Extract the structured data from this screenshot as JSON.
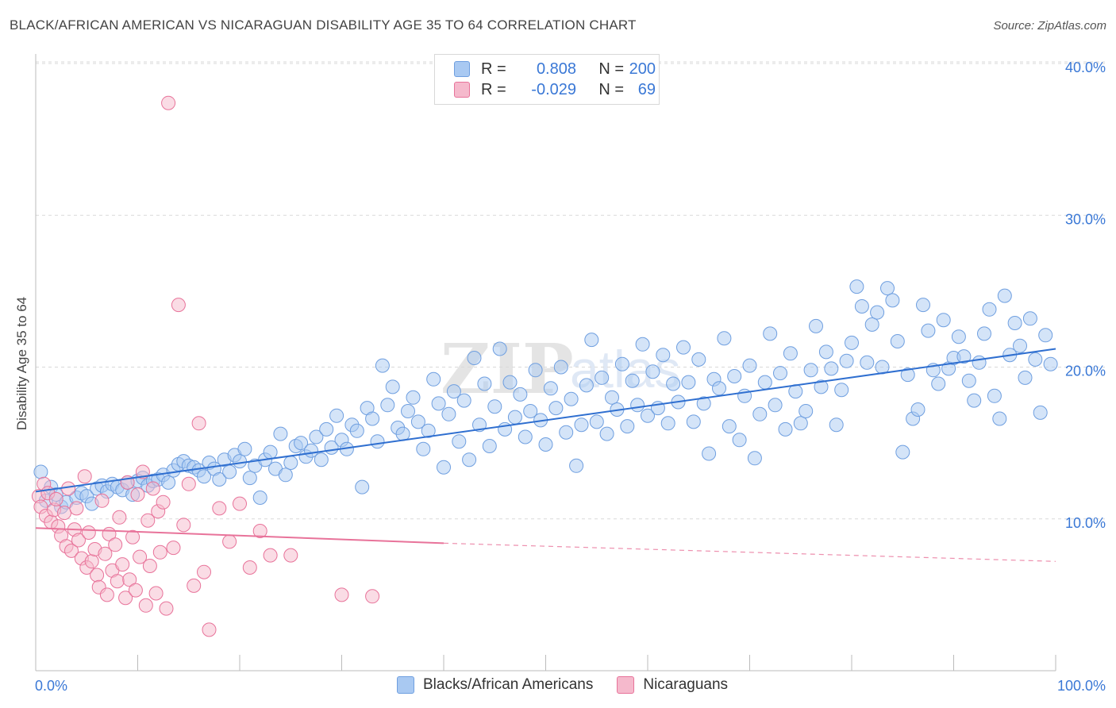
{
  "header": {
    "title": "BLACK/AFRICAN AMERICAN VS NICARAGUAN DISABILITY AGE 35 TO 64 CORRELATION CHART",
    "source": "Source: ZipAtlas.com"
  },
  "watermark": {
    "zip": "ZIP",
    "atlas": "atlas"
  },
  "legend_top": {
    "rows": [
      {
        "r_label": "R =",
        "r_value": "0.808",
        "n_label": "N =",
        "n_value": "200",
        "color": "#a9c9f2"
      },
      {
        "r_label": "R =",
        "r_value": "-0.029",
        "n_label": "N =",
        "n_value": "69",
        "color": "#f5b9cc"
      }
    ]
  },
  "chart_data": {
    "type": "scatter",
    "title": "BLACK/AFRICAN AMERICAN VS NICARAGUAN DISABILITY AGE 35 TO 64 CORRELATION CHART",
    "xlabel": "",
    "ylabel": "Disability Age 35 to 64",
    "xlim": [
      0,
      100
    ],
    "ylim": [
      0,
      40
    ],
    "x_tick_labels": [
      "0.0%",
      "100.0%"
    ],
    "y_ticks": [
      10,
      20,
      30,
      40
    ],
    "y_tick_labels": [
      "10.0%",
      "20.0%",
      "30.0%",
      "40.0%"
    ],
    "grid": true,
    "legend_placement": "top-center and bottom",
    "series": [
      {
        "name": "Blacks/African Americans",
        "color": "#6f9fe0",
        "fill": "#a9c9f2",
        "trend": {
          "x": [
            0,
            100
          ],
          "y": [
            11.8,
            21.2
          ],
          "style": "solid"
        },
        "points": [
          [
            0.5,
            13.1
          ],
          [
            1,
            11.2
          ],
          [
            1.5,
            12.1
          ],
          [
            2,
            11.6
          ],
          [
            2.5,
            10.8
          ],
          [
            3,
            11.1
          ],
          [
            4,
            11.4
          ],
          [
            4.5,
            11.7
          ],
          [
            5,
            11.5
          ],
          [
            5.5,
            11.0
          ],
          [
            6,
            12.0
          ],
          [
            6.5,
            12.2
          ],
          [
            7,
            11.8
          ],
          [
            7.5,
            12.3
          ],
          [
            8,
            12.1
          ],
          [
            8.5,
            11.9
          ],
          [
            9,
            12.4
          ],
          [
            9.5,
            11.6
          ],
          [
            10,
            12.5
          ],
          [
            10.5,
            12.7
          ],
          [
            11,
            12.2
          ],
          [
            11.5,
            12.5
          ],
          [
            12,
            12.6
          ],
          [
            12.5,
            12.9
          ],
          [
            13,
            12.4
          ],
          [
            13.5,
            13.2
          ],
          [
            14,
            13.6
          ],
          [
            14.5,
            13.8
          ],
          [
            15,
            13.5
          ],
          [
            15.5,
            13.4
          ],
          [
            16,
            13.2
          ],
          [
            16.5,
            12.8
          ],
          [
            17,
            13.7
          ],
          [
            17.5,
            13.3
          ],
          [
            18,
            12.6
          ],
          [
            18.5,
            13.9
          ],
          [
            19,
            13.1
          ],
          [
            19.5,
            14.2
          ],
          [
            20,
            13.8
          ],
          [
            20.5,
            14.6
          ],
          [
            21,
            12.7
          ],
          [
            21.5,
            13.5
          ],
          [
            22,
            11.4
          ],
          [
            22.5,
            13.9
          ],
          [
            23,
            14.4
          ],
          [
            23.5,
            13.3
          ],
          [
            24,
            15.6
          ],
          [
            24.5,
            12.9
          ],
          [
            25,
            13.7
          ],
          [
            25.5,
            14.8
          ],
          [
            26,
            15.0
          ],
          [
            26.5,
            14.1
          ],
          [
            27,
            14.5
          ],
          [
            27.5,
            15.4
          ],
          [
            28,
            13.9
          ],
          [
            28.5,
            15.9
          ],
          [
            29,
            14.7
          ],
          [
            29.5,
            16.8
          ],
          [
            30,
            15.2
          ],
          [
            30.5,
            14.6
          ],
          [
            31,
            16.2
          ],
          [
            31.5,
            15.8
          ],
          [
            32,
            12.1
          ],
          [
            32.5,
            17.3
          ],
          [
            33,
            16.6
          ],
          [
            33.5,
            15.1
          ],
          [
            34,
            20.1
          ],
          [
            34.5,
            17.5
          ],
          [
            35,
            18.7
          ],
          [
            35.5,
            16.0
          ],
          [
            36,
            15.6
          ],
          [
            36.5,
            17.1
          ],
          [
            37,
            18.0
          ],
          [
            37.5,
            16.4
          ],
          [
            38,
            14.6
          ],
          [
            38.5,
            15.8
          ],
          [
            39,
            19.2
          ],
          [
            39.5,
            17.6
          ],
          [
            40,
            13.4
          ],
          [
            40.5,
            16.9
          ],
          [
            41,
            18.4
          ],
          [
            41.5,
            15.1
          ],
          [
            42,
            17.8
          ],
          [
            42.5,
            13.9
          ],
          [
            43,
            20.6
          ],
          [
            43.5,
            16.2
          ],
          [
            44,
            18.9
          ],
          [
            44.5,
            14.8
          ],
          [
            45,
            17.4
          ],
          [
            45.5,
            21.2
          ],
          [
            46,
            15.9
          ],
          [
            46.5,
            19.0
          ],
          [
            47,
            16.7
          ],
          [
            47.5,
            18.2
          ],
          [
            48,
            15.4
          ],
          [
            48.5,
            17.1
          ],
          [
            49,
            19.8
          ],
          [
            49.5,
            16.5
          ],
          [
            50,
            14.9
          ],
          [
            50.5,
            18.6
          ],
          [
            51,
            17.3
          ],
          [
            51.5,
            20.0
          ],
          [
            52,
            15.7
          ],
          [
            52.5,
            17.9
          ],
          [
            53,
            13.5
          ],
          [
            53.5,
            16.2
          ],
          [
            54,
            18.8
          ],
          [
            54.5,
            21.8
          ],
          [
            55,
            16.4
          ],
          [
            55.5,
            19.3
          ],
          [
            56,
            15.6
          ],
          [
            56.5,
            18.0
          ],
          [
            57,
            17.2
          ],
          [
            57.5,
            20.2
          ],
          [
            58,
            16.1
          ],
          [
            58.5,
            19.1
          ],
          [
            59,
            17.5
          ],
          [
            59.5,
            21.5
          ],
          [
            60,
            16.8
          ],
          [
            60.5,
            19.7
          ],
          [
            61,
            17.3
          ],
          [
            61.5,
            20.8
          ],
          [
            62,
            16.3
          ],
          [
            62.5,
            18.9
          ],
          [
            63,
            17.7
          ],
          [
            63.5,
            21.3
          ],
          [
            64,
            19.0
          ],
          [
            64.5,
            16.4
          ],
          [
            65,
            20.5
          ],
          [
            65.5,
            17.6
          ],
          [
            66,
            14.3
          ],
          [
            66.5,
            19.2
          ],
          [
            67,
            18.6
          ],
          [
            67.5,
            21.9
          ],
          [
            68,
            16.1
          ],
          [
            68.5,
            19.4
          ],
          [
            69,
            15.2
          ],
          [
            69.5,
            18.1
          ],
          [
            70,
            20.1
          ],
          [
            70.5,
            14.0
          ],
          [
            71,
            16.9
          ],
          [
            71.5,
            19.0
          ],
          [
            72,
            22.2
          ],
          [
            72.5,
            17.5
          ],
          [
            73,
            19.6
          ],
          [
            73.5,
            15.9
          ],
          [
            74,
            20.9
          ],
          [
            74.5,
            18.4
          ],
          [
            75,
            16.3
          ],
          [
            75.5,
            17.1
          ],
          [
            76,
            19.8
          ],
          [
            76.5,
            22.7
          ],
          [
            77,
            18.7
          ],
          [
            77.5,
            21.0
          ],
          [
            78,
            19.9
          ],
          [
            78.5,
            16.2
          ],
          [
            79,
            18.5
          ],
          [
            79.5,
            20.4
          ],
          [
            80,
            21.6
          ],
          [
            80.5,
            25.3
          ],
          [
            81,
            24.0
          ],
          [
            81.5,
            20.3
          ],
          [
            82,
            22.8
          ],
          [
            82.5,
            23.6
          ],
          [
            83,
            20.0
          ],
          [
            83.5,
            25.2
          ],
          [
            84,
            24.4
          ],
          [
            84.5,
            21.7
          ],
          [
            85,
            14.4
          ],
          [
            85.5,
            19.5
          ],
          [
            86,
            16.6
          ],
          [
            86.5,
            17.2
          ],
          [
            87,
            24.1
          ],
          [
            87.5,
            22.4
          ],
          [
            88,
            19.8
          ],
          [
            88.5,
            18.9
          ],
          [
            89,
            23.1
          ],
          [
            89.5,
            19.9
          ],
          [
            90,
            20.6
          ],
          [
            90.5,
            22.0
          ],
          [
            91,
            20.7
          ],
          [
            91.5,
            19.1
          ],
          [
            92,
            17.8
          ],
          [
            92.5,
            20.3
          ],
          [
            93,
            22.2
          ],
          [
            93.5,
            23.8
          ],
          [
            94,
            18.1
          ],
          [
            94.5,
            16.6
          ],
          [
            95,
            24.7
          ],
          [
            95.5,
            20.8
          ],
          [
            96,
            22.9
          ],
          [
            96.5,
            21.4
          ],
          [
            97,
            19.3
          ],
          [
            97.5,
            23.2
          ],
          [
            98,
            20.5
          ],
          [
            98.5,
            17.0
          ],
          [
            99,
            22.1
          ],
          [
            99.5,
            20.2
          ]
        ]
      },
      {
        "name": "Nicaraguans",
        "color": "#e8739a",
        "fill": "#f5b9cc",
        "trend": {
          "x": [
            0,
            40,
            100
          ],
          "y": [
            9.4,
            8.4,
            7.2
          ],
          "style": "solid-then-dashed"
        },
        "points": [
          [
            0.3,
            11.5
          ],
          [
            0.5,
            10.8
          ],
          [
            0.8,
            12.3
          ],
          [
            1,
            10.2
          ],
          [
            1.2,
            11.7
          ],
          [
            1.5,
            9.8
          ],
          [
            1.8,
            10.6
          ],
          [
            2,
            11.3
          ],
          [
            2.2,
            9.5
          ],
          [
            2.5,
            8.9
          ],
          [
            2.8,
            10.4
          ],
          [
            3,
            8.2
          ],
          [
            3.2,
            12.0
          ],
          [
            3.5,
            7.9
          ],
          [
            3.8,
            9.3
          ],
          [
            4,
            10.7
          ],
          [
            4.2,
            8.6
          ],
          [
            4.5,
            7.4
          ],
          [
            4.8,
            12.8
          ],
          [
            5,
            6.8
          ],
          [
            5.2,
            9.1
          ],
          [
            5.5,
            7.2
          ],
          [
            5.8,
            8.0
          ],
          [
            6,
            6.3
          ],
          [
            6.2,
            5.5
          ],
          [
            6.5,
            11.2
          ],
          [
            6.8,
            7.7
          ],
          [
            7,
            5.0
          ],
          [
            7.2,
            9.0
          ],
          [
            7.5,
            6.6
          ],
          [
            7.8,
            8.3
          ],
          [
            8,
            5.9
          ],
          [
            8.2,
            10.1
          ],
          [
            8.5,
            7.0
          ],
          [
            8.8,
            4.8
          ],
          [
            9,
            12.4
          ],
          [
            9.2,
            6.0
          ],
          [
            9.5,
            8.8
          ],
          [
            9.8,
            5.3
          ],
          [
            10,
            11.6
          ],
          [
            10.2,
            7.5
          ],
          [
            10.5,
            13.1
          ],
          [
            10.8,
            4.3
          ],
          [
            11,
            9.9
          ],
          [
            11.2,
            6.9
          ],
          [
            11.5,
            12.0
          ],
          [
            11.8,
            5.1
          ],
          [
            12,
            10.5
          ],
          [
            12.2,
            7.8
          ],
          [
            12.5,
            11.1
          ],
          [
            12.8,
            4.1
          ],
          [
            13,
            37.4
          ],
          [
            13.5,
            8.1
          ],
          [
            14,
            24.1
          ],
          [
            14.5,
            9.6
          ],
          [
            15,
            12.3
          ],
          [
            15.5,
            5.6
          ],
          [
            16,
            16.3
          ],
          [
            16.5,
            6.5
          ],
          [
            17,
            2.7
          ],
          [
            18,
            10.7
          ],
          [
            19,
            8.5
          ],
          [
            20,
            11.0
          ],
          [
            21,
            6.8
          ],
          [
            22,
            9.2
          ],
          [
            23,
            7.6
          ],
          [
            25,
            7.6
          ],
          [
            30,
            5.0
          ],
          [
            33,
            4.9
          ]
        ]
      }
    ]
  },
  "legend_bottom": {
    "items": [
      {
        "label": "Blacks/African Americans",
        "color": "#a9c9f2"
      },
      {
        "label": "Nicaraguans",
        "color": "#f5b9cc"
      }
    ]
  }
}
